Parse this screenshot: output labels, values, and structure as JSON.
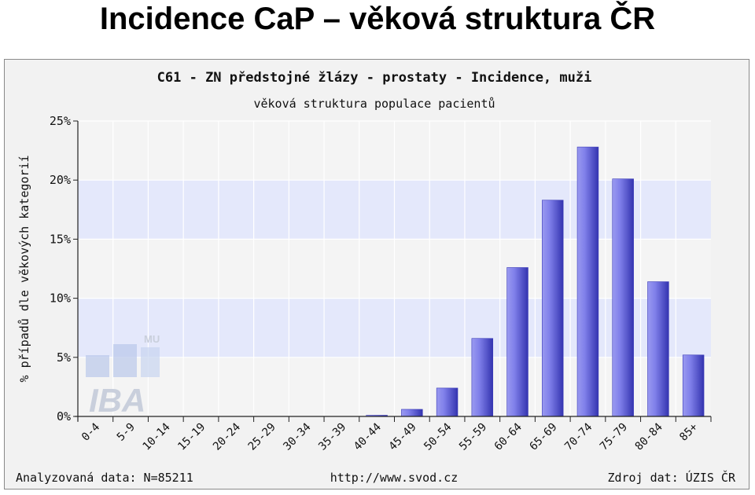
{
  "slide": {
    "title": "Incidence CaP – věková struktura ČR"
  },
  "footer": {
    "left": "Analyzovaná data: N=85211",
    "center": "http://www.svod.cz",
    "right": "Zdroj dat: ÚZIS ČR"
  },
  "watermark": {
    "big": "IBA",
    "small": "MU"
  },
  "colors": {
    "bar": "#6d6de0",
    "bar_dark": "#3a3ab8",
    "band": "#e4e8fb",
    "plot_bg": "#f4f4f4"
  },
  "chart_data": {
    "type": "bar",
    "title": "C61 - ZN předstojné žlázy - prostaty - Incidence, muži",
    "subtitle": "věková struktura populace pacientů",
    "xlabel": "",
    "ylabel": "% případů dle věkových kategorií",
    "ylim": [
      0,
      25
    ],
    "yticks": [
      0,
      5,
      10,
      15,
      20,
      25
    ],
    "ytick_labels": [
      "0%",
      "5%",
      "10%",
      "15%",
      "20%",
      "25%"
    ],
    "grid": true,
    "categories": [
      "0-4",
      "5-9",
      "10-14",
      "15-19",
      "20-24",
      "25-29",
      "30-34",
      "35-39",
      "40-44",
      "45-49",
      "50-54",
      "55-59",
      "60-64",
      "65-69",
      "70-74",
      "75-79",
      "80-84",
      "85+"
    ],
    "values": [
      0,
      0,
      0,
      0,
      0,
      0,
      0,
      0,
      0.1,
      0.6,
      2.4,
      6.6,
      12.6,
      18.3,
      22.8,
      20.1,
      11.4,
      5.2
    ]
  }
}
